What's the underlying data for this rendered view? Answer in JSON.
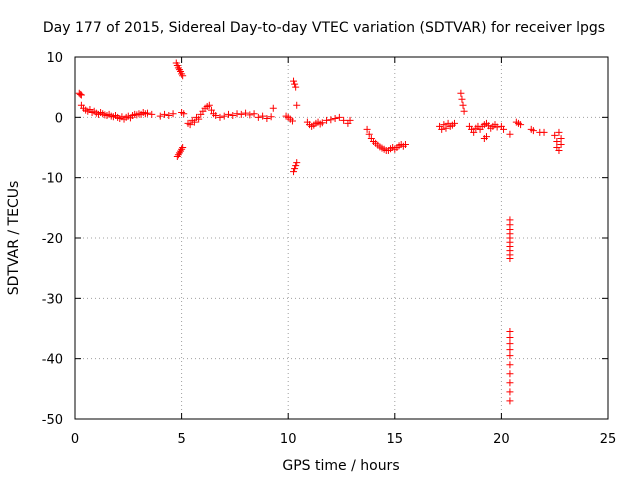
{
  "chart_data": {
    "type": "scatter",
    "title": "Day 177 of 2015, Sidereal Day-to-day VTEC variation (SDTVAR) for receiver lpgs",
    "xlabel": "GPS time / hours",
    "ylabel": "SDTVAR / TECUs",
    "xlim": [
      0,
      25
    ],
    "ylim": [
      -50,
      10
    ],
    "xticks": [
      "0",
      "5",
      "10",
      "15",
      "20",
      "25"
    ],
    "yticks": [
      "10",
      "0",
      "-10",
      "-20",
      "-30",
      "-40",
      "-50"
    ],
    "grid": true,
    "marker": "+",
    "color": "#ff0000",
    "series": [
      {
        "name": "SDTVAR",
        "points": [
          [
            0.2,
            4.0
          ],
          [
            0.25,
            3.8
          ],
          [
            0.3,
            3.7
          ],
          [
            0.3,
            2.0
          ],
          [
            0.4,
            1.5
          ],
          [
            0.5,
            1.2
          ],
          [
            0.6,
            1.0
          ],
          [
            0.7,
            1.3
          ],
          [
            0.8,
            0.8
          ],
          [
            0.9,
            1.0
          ],
          [
            1.0,
            0.7
          ],
          [
            1.1,
            0.5
          ],
          [
            1.2,
            0.8
          ],
          [
            1.3,
            0.6
          ],
          [
            1.4,
            0.4
          ],
          [
            1.5,
            0.3
          ],
          [
            1.6,
            0.5
          ],
          [
            1.7,
            0.2
          ],
          [
            1.8,
            0.1
          ],
          [
            1.9,
            0.3
          ],
          [
            2.0,
            0.0
          ],
          [
            2.1,
            -0.2
          ],
          [
            2.2,
            0.1
          ],
          [
            2.3,
            -0.3
          ],
          [
            2.4,
            0.0
          ],
          [
            2.5,
            0.2
          ],
          [
            2.6,
            -0.1
          ],
          [
            2.7,
            0.3
          ],
          [
            2.8,
            0.5
          ],
          [
            2.9,
            0.4
          ],
          [
            3.0,
            0.6
          ],
          [
            3.1,
            0.5
          ],
          [
            3.2,
            0.8
          ],
          [
            3.3,
            0.6
          ],
          [
            3.4,
            0.7
          ],
          [
            3.6,
            0.5
          ],
          [
            4.0,
            0.2
          ],
          [
            4.2,
            0.5
          ],
          [
            4.4,
            0.3
          ],
          [
            4.6,
            0.6
          ],
          [
            4.75,
            9.0
          ],
          [
            4.8,
            8.6
          ],
          [
            4.85,
            8.2
          ],
          [
            4.9,
            7.9
          ],
          [
            4.95,
            7.6
          ],
          [
            5.0,
            7.2
          ],
          [
            5.05,
            6.9
          ],
          [
            4.8,
            -6.5
          ],
          [
            4.85,
            -6.2
          ],
          [
            4.9,
            -5.9
          ],
          [
            4.95,
            -5.6
          ],
          [
            5.0,
            -5.3
          ],
          [
            5.05,
            -5.0
          ],
          [
            5.0,
            0.8
          ],
          [
            5.1,
            0.6
          ],
          [
            5.3,
            -1.0
          ],
          [
            5.4,
            -1.2
          ],
          [
            5.5,
            -0.5
          ],
          [
            5.6,
            -0.8
          ],
          [
            5.7,
            0.0
          ],
          [
            5.8,
            -0.3
          ],
          [
            5.9,
            0.5
          ],
          [
            6.0,
            1.0
          ],
          [
            6.1,
            1.5
          ],
          [
            6.2,
            1.8
          ],
          [
            6.3,
            2.0
          ],
          [
            6.4,
            1.2
          ],
          [
            6.5,
            0.6
          ],
          [
            6.6,
            0.3
          ],
          [
            6.8,
            0.0
          ],
          [
            7.0,
            0.2
          ],
          [
            7.2,
            0.5
          ],
          [
            7.4,
            0.3
          ],
          [
            7.6,
            0.6
          ],
          [
            7.8,
            0.5
          ],
          [
            8.0,
            0.7
          ],
          [
            8.2,
            0.4
          ],
          [
            8.4,
            0.6
          ],
          [
            8.6,
            0.0
          ],
          [
            8.8,
            0.2
          ],
          [
            9.0,
            -0.2
          ],
          [
            9.2,
            0.1
          ],
          [
            9.3,
            1.5
          ],
          [
            9.9,
            0.2
          ],
          [
            10.0,
            0.0
          ],
          [
            10.1,
            -0.3
          ],
          [
            10.2,
            -0.6
          ],
          [
            10.25,
            6.0
          ],
          [
            10.3,
            5.5
          ],
          [
            10.35,
            5.0
          ],
          [
            10.4,
            2.0
          ],
          [
            10.25,
            -9.0
          ],
          [
            10.3,
            -8.5
          ],
          [
            10.35,
            -8.0
          ],
          [
            10.4,
            -7.5
          ],
          [
            10.9,
            -0.8
          ],
          [
            11.0,
            -1.2
          ],
          [
            11.1,
            -1.5
          ],
          [
            11.2,
            -1.3
          ],
          [
            11.3,
            -1.0
          ],
          [
            11.4,
            -0.8
          ],
          [
            11.5,
            -1.1
          ],
          [
            11.6,
            -0.9
          ],
          [
            11.8,
            -0.5
          ],
          [
            12.0,
            -0.4
          ],
          [
            12.2,
            -0.2
          ],
          [
            12.4,
            0.0
          ],
          [
            12.6,
            -0.5
          ],
          [
            12.8,
            -1.0
          ],
          [
            12.9,
            -0.5
          ],
          [
            13.7,
            -2.0
          ],
          [
            13.8,
            -2.8
          ],
          [
            13.9,
            -3.5
          ],
          [
            14.0,
            -4.0
          ],
          [
            14.1,
            -4.3
          ],
          [
            14.2,
            -4.6
          ],
          [
            14.3,
            -4.9
          ],
          [
            14.4,
            -5.1
          ],
          [
            14.5,
            -5.3
          ],
          [
            14.6,
            -5.5
          ],
          [
            14.7,
            -5.5
          ],
          [
            14.8,
            -5.2
          ],
          [
            14.9,
            -5.0
          ],
          [
            15.0,
            -5.3
          ],
          [
            15.1,
            -5.0
          ],
          [
            15.2,
            -4.7
          ],
          [
            15.3,
            -4.5
          ],
          [
            15.4,
            -4.8
          ],
          [
            15.5,
            -4.5
          ],
          [
            17.1,
            -1.5
          ],
          [
            17.2,
            -2.0
          ],
          [
            17.3,
            -1.2
          ],
          [
            17.4,
            -1.8
          ],
          [
            17.5,
            -1.0
          ],
          [
            17.6,
            -1.5
          ],
          [
            17.7,
            -1.3
          ],
          [
            17.8,
            -1.0
          ],
          [
            18.1,
            4.0
          ],
          [
            18.15,
            3.0
          ],
          [
            18.2,
            2.0
          ],
          [
            18.25,
            1.0
          ],
          [
            18.5,
            -1.5
          ],
          [
            18.6,
            -2.0
          ],
          [
            18.7,
            -2.5
          ],
          [
            18.8,
            -1.8
          ],
          [
            18.9,
            -1.5
          ],
          [
            19.0,
            -2.0
          ],
          [
            19.1,
            -1.5
          ],
          [
            19.2,
            -1.2
          ],
          [
            19.3,
            -1.0
          ],
          [
            19.4,
            -1.4
          ],
          [
            19.5,
            -1.8
          ],
          [
            19.6,
            -1.5
          ],
          [
            19.7,
            -1.2
          ],
          [
            19.8,
            -1.6
          ],
          [
            19.2,
            -3.5
          ],
          [
            19.3,
            -3.2
          ],
          [
            20.0,
            -1.5
          ],
          [
            20.1,
            -2.0
          ],
          [
            20.4,
            -17.0
          ],
          [
            20.4,
            -17.8
          ],
          [
            20.4,
            -18.6
          ],
          [
            20.4,
            -19.3
          ],
          [
            20.4,
            -20.0
          ],
          [
            20.4,
            -20.7
          ],
          [
            20.4,
            -21.4
          ],
          [
            20.4,
            -22.1
          ],
          [
            20.4,
            -22.8
          ],
          [
            20.4,
            -23.4
          ],
          [
            20.4,
            -35.5
          ],
          [
            20.4,
            -36.5
          ],
          [
            20.4,
            -37.5
          ],
          [
            20.4,
            -38.5
          ],
          [
            20.4,
            -39.5
          ],
          [
            20.4,
            -41.0
          ],
          [
            20.4,
            -42.5
          ],
          [
            20.4,
            -44.0
          ],
          [
            20.4,
            -45.5
          ],
          [
            20.4,
            -47.0
          ],
          [
            20.4,
            -2.8
          ],
          [
            20.7,
            -0.8
          ],
          [
            20.8,
            -1.0
          ],
          [
            20.9,
            -1.2
          ],
          [
            21.4,
            -2.0
          ],
          [
            21.5,
            -2.2
          ],
          [
            21.8,
            -2.5
          ],
          [
            22.0,
            -2.5
          ],
          [
            22.5,
            -3.0
          ],
          [
            22.6,
            -4.0
          ],
          [
            22.6,
            -5.0
          ],
          [
            22.7,
            -5.5
          ],
          [
            22.7,
            -2.5
          ],
          [
            22.8,
            -3.5
          ],
          [
            22.8,
            -4.5
          ]
        ]
      }
    ]
  }
}
